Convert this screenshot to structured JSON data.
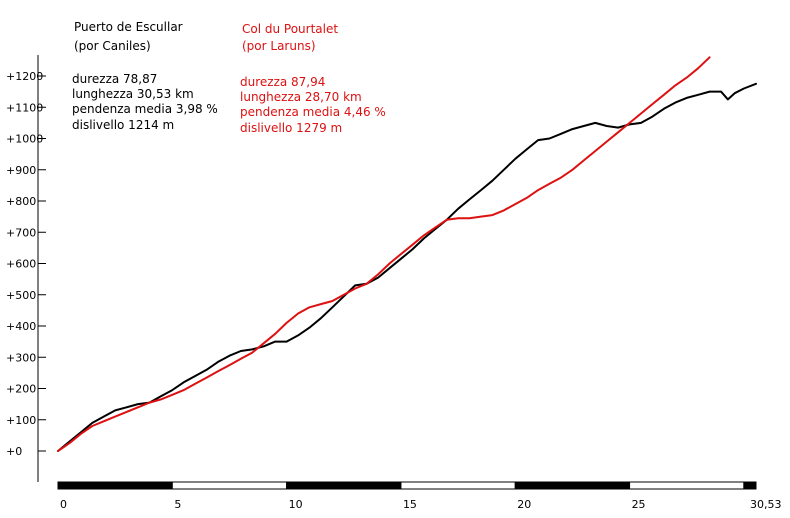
{
  "chart_data": {
    "type": "line",
    "title": "",
    "xlabel": "",
    "ylabel": "",
    "xlim": [
      0,
      30.53
    ],
    "ylim": [
      -100,
      1300
    ],
    "y_ticks": [
      0,
      100,
      200,
      300,
      400,
      500,
      600,
      700,
      800,
      900,
      1000,
      1100,
      1200
    ],
    "y_tick_labels": [
      "+0",
      "+100",
      "+200",
      "+300",
      "+400",
      "+500",
      "+600",
      "+700",
      "+800",
      "+900",
      "+1000",
      "+1100",
      "+1200"
    ],
    "x_ticks": [
      0,
      5,
      10,
      15,
      20,
      25,
      30.53
    ],
    "x_tick_labels": [
      "0",
      "5",
      "10",
      "15",
      "20",
      "25",
      "30,53"
    ],
    "scale_bar_segments": [
      0,
      5,
      10,
      15,
      20,
      25,
      30,
      30.53
    ],
    "grid": false,
    "legend": "top-left",
    "series": [
      {
        "name": "Puerto de Escullar",
        "subtitle": "(por Caniles)",
        "color": "#000000",
        "info": [
          "durezza 78,87",
          "lunghezza 30,53 km",
          "pendenza media 3,98 %",
          "dislivello 1214 m"
        ],
        "x": [
          0,
          0.5,
          1,
          1.5,
          2,
          2.5,
          3,
          3.5,
          4,
          4.5,
          5,
          5.5,
          6,
          6.5,
          7,
          7.5,
          8,
          8.5,
          9,
          9.5,
          10,
          10.5,
          11,
          11.5,
          12,
          12.5,
          13,
          13.5,
          14,
          14.5,
          15,
          15.5,
          16,
          16.5,
          17,
          17.5,
          18,
          18.5,
          19,
          19.5,
          20,
          20.5,
          21,
          21.5,
          22,
          22.5,
          23,
          23.5,
          24,
          24.5,
          25,
          25.5,
          26,
          26.5,
          27,
          27.5,
          28,
          28.5,
          29,
          29.3,
          29.6,
          30,
          30.53
        ],
        "y": [
          0,
          30,
          60,
          90,
          110,
          130,
          140,
          150,
          155,
          175,
          195,
          220,
          240,
          260,
          285,
          305,
          320,
          325,
          335,
          350,
          350,
          370,
          395,
          425,
          460,
          495,
          530,
          535,
          555,
          585,
          615,
          645,
          680,
          710,
          740,
          775,
          805,
          835,
          865,
          900,
          935,
          965,
          995,
          1000,
          1015,
          1030,
          1040,
          1050,
          1040,
          1035,
          1045,
          1050,
          1070,
          1095,
          1115,
          1130,
          1140,
          1150,
          1150,
          1125,
          1145,
          1160,
          1175
        ]
      },
      {
        "name": "Col du Pourtalet",
        "subtitle": "(por Laruns)",
        "color": "#dd1111",
        "info": [
          "durezza 87,94",
          "lunghezza 28,70 km",
          "pendenza media 4,46 %",
          "dislivello 1279 m"
        ],
        "x": [
          0,
          0.5,
          1,
          1.5,
          2,
          2.5,
          3,
          3.5,
          4,
          4.5,
          5,
          5.5,
          6,
          6.5,
          7,
          7.5,
          8,
          8.5,
          9,
          9.5,
          10,
          10.5,
          11,
          11.5,
          12,
          12.5,
          13,
          13.5,
          14,
          14.5,
          15,
          15.5,
          16,
          16.5,
          17,
          17.5,
          18,
          18.5,
          19,
          19.5,
          20,
          20.5,
          21,
          21.5,
          22,
          22.5,
          23,
          23.5,
          24,
          24.5,
          25,
          25.5,
          26,
          26.5,
          27,
          27.5,
          28,
          28.5
        ],
        "y": [
          0,
          25,
          55,
          80,
          95,
          110,
          125,
          140,
          155,
          165,
          180,
          195,
          215,
          235,
          255,
          275,
          295,
          315,
          345,
          375,
          410,
          440,
          460,
          470,
          480,
          500,
          520,
          535,
          565,
          600,
          630,
          660,
          690,
          715,
          740,
          745,
          745,
          750,
          755,
          770,
          790,
          810,
          835,
          855,
          875,
          900,
          930,
          960,
          990,
          1020,
          1050,
          1080,
          1110,
          1140,
          1170,
          1195,
          1225,
          1260
        ]
      }
    ]
  }
}
